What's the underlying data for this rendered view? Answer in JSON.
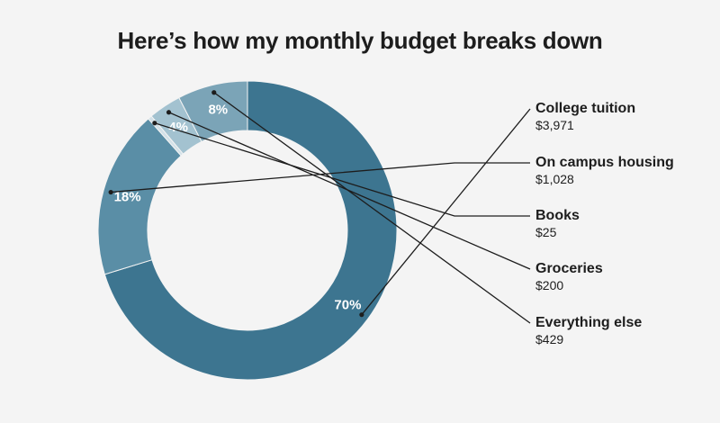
{
  "chart_data": {
    "type": "pie",
    "title": "Here’s how my monthly budget breaks down",
    "donut": true,
    "slices": [
      {
        "name": "College tuition",
        "value": 3971,
        "value_label": "$3,971",
        "percent_label": "70%",
        "color": "#3d7590"
      },
      {
        "name": "On campus housing",
        "value": 1028,
        "value_label": "$1,028",
        "percent_label": "18%",
        "color": "#5a8ea6"
      },
      {
        "name": "Books",
        "value": 25,
        "value_label": "$25",
        "percent_label": "",
        "color": "#d3e1e8"
      },
      {
        "name": "Groceries",
        "value": 200,
        "value_label": "$200",
        "percent_label": "4%",
        "color": "#a3c2d0"
      },
      {
        "name": "Everything else",
        "value": 429,
        "value_label": "$429",
        "percent_label": "8%",
        "color": "#7ba4b7"
      }
    ],
    "legend": "right"
  }
}
